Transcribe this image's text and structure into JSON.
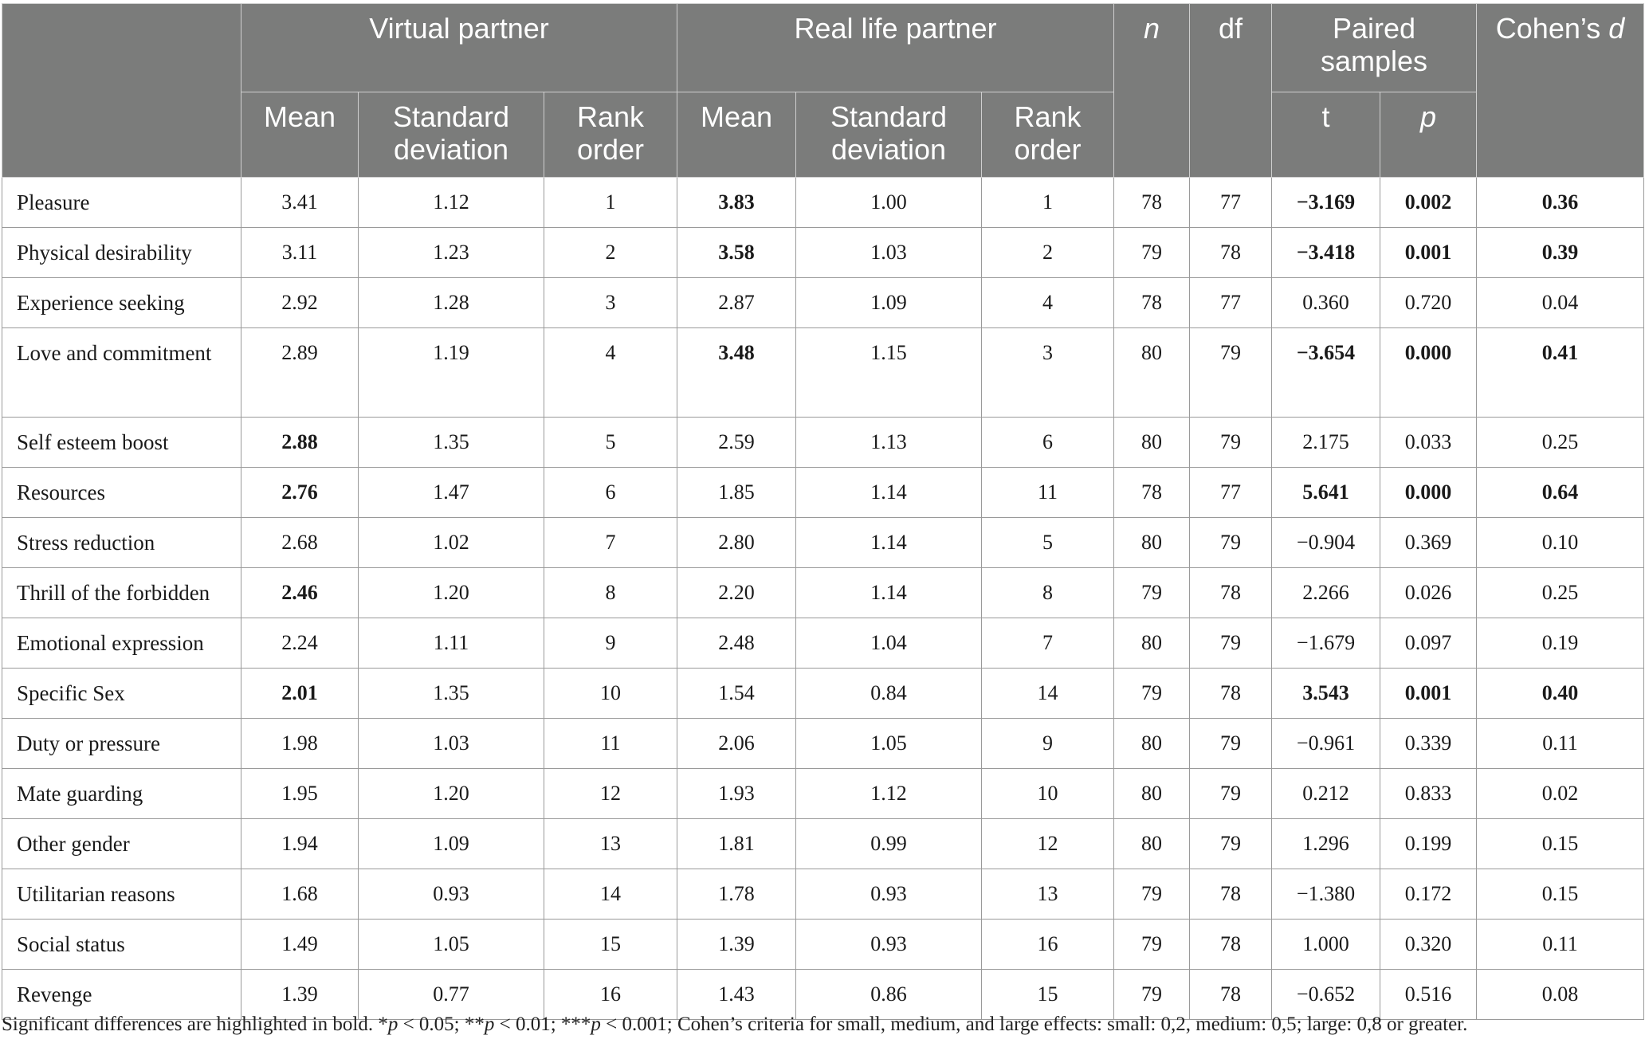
{
  "header": {
    "virtual_partner": "Virtual partner",
    "real_life_partner": "Real life partner",
    "n": "n",
    "df": "df",
    "paired_samples": "Paired samples",
    "cohens_d_prefix": "Cohen’s ",
    "cohens_d_symbol": "d",
    "mean": "Mean",
    "standard_deviation": "Standard deviation",
    "rank_order": "Rank order",
    "t": "t",
    "p": "p"
  },
  "rows": [
    {
      "label": "Pleasure",
      "vp_mean": "3.41",
      "vp_sd": "1.12",
      "vp_rank": "1",
      "rl_mean": "3.83",
      "rl_sd": "1.00",
      "rl_rank": "1",
      "n": "78",
      "df": "77",
      "t": "−3.169",
      "p": "0.002",
      "d": "0.36"
    },
    {
      "label": "Physical desirability",
      "vp_mean": "3.11",
      "vp_sd": "1.23",
      "vp_rank": "2",
      "rl_mean": "3.58",
      "rl_sd": "1.03",
      "rl_rank": "2",
      "n": "79",
      "df": "78",
      "t": "−3.418",
      "p": "0.001",
      "d": "0.39"
    },
    {
      "label": "Experience seeking",
      "vp_mean": "2.92",
      "vp_sd": "1.28",
      "vp_rank": "3",
      "rl_mean": "2.87",
      "rl_sd": "1.09",
      "rl_rank": "4",
      "n": "78",
      "df": "77",
      "t": "0.360",
      "p": "0.720",
      "d": "0.04"
    },
    {
      "label": "Love and commitment",
      "vp_mean": "2.89",
      "vp_sd": "1.19",
      "vp_rank": "4",
      "rl_mean": "3.48",
      "rl_sd": "1.15",
      "rl_rank": "3",
      "n": "80",
      "df": "79",
      "t": "−3.654",
      "p": "0.000",
      "d": "0.41"
    },
    {
      "label": "Self esteem boost",
      "vp_mean": "2.88",
      "vp_sd": "1.35",
      "vp_rank": "5",
      "rl_mean": "2.59",
      "rl_sd": "1.13",
      "rl_rank": "6",
      "n": "80",
      "df": "79",
      "t": "2.175",
      "p": "0.033",
      "d": "0.25"
    },
    {
      "label": "Resources",
      "vp_mean": "2.76",
      "vp_sd": "1.47",
      "vp_rank": "6",
      "rl_mean": "1.85",
      "rl_sd": "1.14",
      "rl_rank": "11",
      "n": "78",
      "df": "77",
      "t": "5.641",
      "p": "0.000",
      "d": "0.64"
    },
    {
      "label": "Stress reduction",
      "vp_mean": "2.68",
      "vp_sd": "1.02",
      "vp_rank": "7",
      "rl_mean": "2.80",
      "rl_sd": "1.14",
      "rl_rank": "5",
      "n": "80",
      "df": "79",
      "t": "−0.904",
      "p": "0.369",
      "d": "0.10"
    },
    {
      "label": "Thrill of the forbidden",
      "vp_mean": "2.46",
      "vp_sd": "1.20",
      "vp_rank": "8",
      "rl_mean": "2.20",
      "rl_sd": "1.14",
      "rl_rank": "8",
      "n": "79",
      "df": "78",
      "t": "2.266",
      "p": "0.026",
      "d": "0.25"
    },
    {
      "label": "Emotional expression",
      "vp_mean": "2.24",
      "vp_sd": "1.11",
      "vp_rank": "9",
      "rl_mean": "2.48",
      "rl_sd": "1.04",
      "rl_rank": "7",
      "n": "80",
      "df": "79",
      "t": "−1.679",
      "p": "0.097",
      "d": "0.19"
    },
    {
      "label": "Specific Sex",
      "vp_mean": "2.01",
      "vp_sd": "1.35",
      "vp_rank": "10",
      "rl_mean": "1.54",
      "rl_sd": "0.84",
      "rl_rank": "14",
      "n": "79",
      "df": "78",
      "t": "3.543",
      "p": "0.001",
      "d": "0.40"
    },
    {
      "label": "Duty or pressure",
      "vp_mean": "1.98",
      "vp_sd": "1.03",
      "vp_rank": "11",
      "rl_mean": "2.06",
      "rl_sd": "1.05",
      "rl_rank": "9",
      "n": "80",
      "df": "79",
      "t": "−0.961",
      "p": "0.339",
      "d": "0.11"
    },
    {
      "label": "Mate guarding",
      "vp_mean": "1.95",
      "vp_sd": "1.20",
      "vp_rank": "12",
      "rl_mean": "1.93",
      "rl_sd": "1.12",
      "rl_rank": "10",
      "n": "80",
      "df": "79",
      "t": "0.212",
      "p": "0.833",
      "d": "0.02"
    },
    {
      "label": "Other gender",
      "vp_mean": "1.94",
      "vp_sd": "1.09",
      "vp_rank": "13",
      "rl_mean": "1.81",
      "rl_sd": "0.99",
      "rl_rank": "12",
      "n": "80",
      "df": "79",
      "t": "1.296",
      "p": "0.199",
      "d": "0.15"
    },
    {
      "label": "Utilitarian reasons",
      "vp_mean": "1.68",
      "vp_sd": "0.93",
      "vp_rank": "14",
      "rl_mean": "1.78",
      "rl_sd": "0.93",
      "rl_rank": "13",
      "n": "79",
      "df": "78",
      "t": "−1.380",
      "p": "0.172",
      "d": "0.15"
    },
    {
      "label": "Social status",
      "vp_mean": "1.49",
      "vp_sd": "1.05",
      "vp_rank": "15",
      "rl_mean": "1.39",
      "rl_sd": "0.93",
      "rl_rank": "16",
      "n": "79",
      "df": "78",
      "t": "1.000",
      "p": "0.320",
      "d": "0.11"
    },
    {
      "label": "Revenge",
      "vp_mean": "1.39",
      "vp_sd": "0.77",
      "vp_rank": "16",
      "rl_mean": "1.43",
      "rl_sd": "0.86",
      "rl_rank": "15",
      "n": "79",
      "df": "78",
      "t": "−0.652",
      "p": "0.516",
      "d": "0.08"
    }
  ],
  "bold_cells": [
    [
      "rl_mean",
      "t",
      "p",
      "d"
    ],
    [
      "rl_mean",
      "t",
      "p",
      "d"
    ],
    [],
    [
      "rl_mean",
      "t",
      "p",
      "d"
    ],
    [
      "vp_mean"
    ],
    [
      "vp_mean",
      "t",
      "p",
      "d"
    ],
    [],
    [
      "vp_mean"
    ],
    [],
    [
      "vp_mean",
      "t",
      "p",
      "d"
    ],
    [],
    [],
    [],
    [],
    [],
    []
  ],
  "footnote": {
    "text1": "Significant differences are highlighted in bold. *",
    "p1": "p",
    "text2": " < 0.05; **",
    "p2": "p",
    "text3": " < 0.01; ***",
    "p3": "p",
    "text4": " < 0.001; Cohen’s criteria for small, medium, and large effects: small: 0,2, medium: 0,5; large: 0,8 or greater."
  }
}
